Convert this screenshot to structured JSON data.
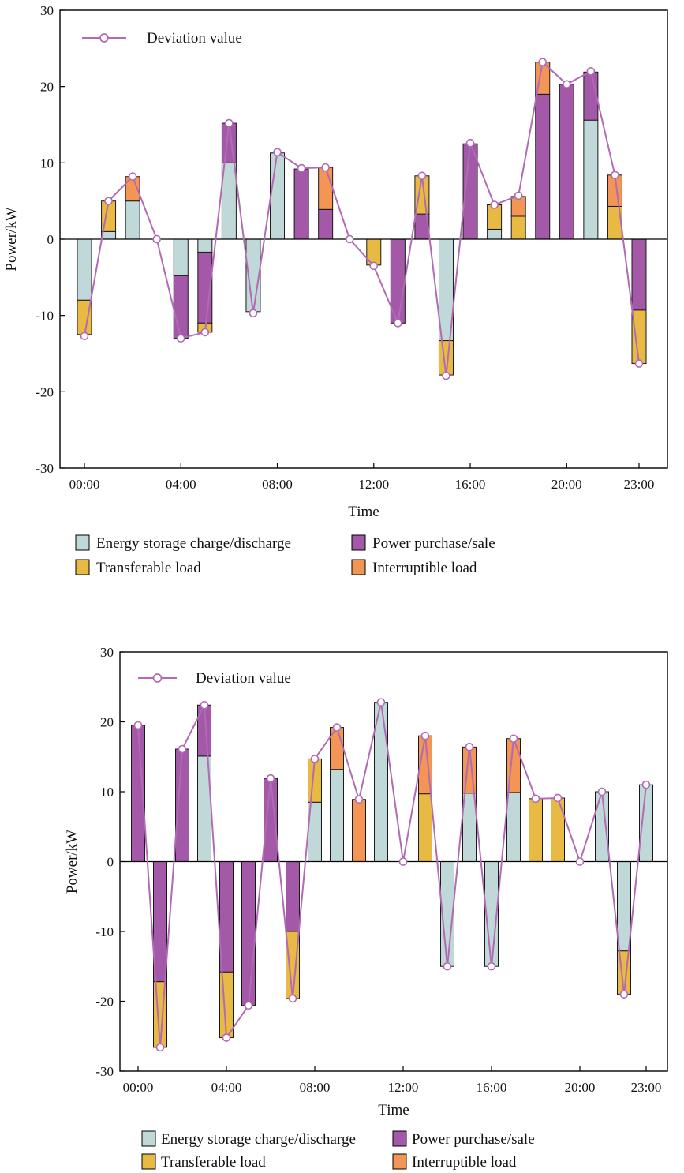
{
  "chart_data": [
    {
      "type": "bar",
      "stacked": true,
      "title": "",
      "xlabel": "Time",
      "ylabel": "Power/kW",
      "ylim": [
        -30,
        30
      ],
      "yticks": [
        30,
        20,
        10,
        0,
        -10,
        -20,
        -30
      ],
      "ytick_labels": [
        "30",
        "20",
        "10",
        "0",
        "-10",
        "-20",
        "-30"
      ],
      "hours": [
        0,
        1,
        2,
        3,
        4,
        5,
        6,
        7,
        8,
        9,
        10,
        11,
        12,
        13,
        14,
        15,
        16,
        17,
        18,
        19,
        20,
        21,
        22,
        23
      ],
      "xtick_labels": [
        "00:00",
        "04:00",
        "08:00",
        "12:00",
        "16:00",
        "20:00",
        "23:00"
      ],
      "xtick_hours": [
        0,
        4,
        8,
        12,
        16,
        20,
        23
      ],
      "series": [
        {
          "name": "Energy storage charge/discharge",
          "color": "#c1d8d8",
          "values": [
            -8,
            1,
            5,
            0,
            -4.8,
            -1.7,
            10,
            -9.5,
            11.3,
            0,
            0,
            0,
            0,
            0,
            0,
            -13.3,
            0,
            1.3,
            0,
            0,
            0,
            15.6,
            0,
            0
          ]
        },
        {
          "name": "Power purchase/sale",
          "color": "#a358a8",
          "values": [
            0,
            0,
            0,
            0,
            -8.2,
            -9.3,
            5.2,
            0,
            0,
            9.2,
            3.9,
            0,
            0,
            -11,
            3.3,
            0,
            12.5,
            0,
            0,
            19,
            20.3,
            6.3,
            0,
            -9.3
          ]
        },
        {
          "name": "Transferable load",
          "color": "#e8ba44",
          "values": [
            -4.5,
            4,
            0,
            0,
            0,
            -1.2,
            0,
            0,
            0,
            0,
            0,
            0,
            -3.4,
            0,
            5,
            -4.5,
            0,
            3.2,
            3,
            0,
            0,
            0,
            4.3,
            -7
          ]
        },
        {
          "name": "Interruptible load",
          "color": "#f39655",
          "values": [
            0,
            0,
            3.2,
            0,
            0,
            0,
            0,
            0,
            0,
            0,
            5.5,
            0,
            0,
            0,
            0,
            0,
            0,
            0,
            2.6,
            4.2,
            0,
            0,
            4.1,
            0
          ]
        }
      ],
      "deviation": {
        "name": "Deviation value",
        "color": "#b26ab4",
        "values": [
          -12.7,
          5,
          8.2,
          0,
          -13,
          -12.2,
          15.2,
          -9.7,
          11.4,
          9.3,
          9.4,
          0,
          -3.5,
          -11,
          8.3,
          -17.9,
          12.6,
          4.5,
          5.7,
          23.2,
          20.3,
          22,
          8.4,
          -16.3
        ]
      },
      "legend_position": "top-left"
    },
    {
      "type": "bar",
      "stacked": true,
      "title": "",
      "xlabel": "Time",
      "ylabel": "Power/kW",
      "ylim": [
        -30,
        30
      ],
      "yticks": [
        30,
        20,
        10,
        0,
        -10,
        -20,
        -30
      ],
      "ytick_labels": [
        "30",
        "20",
        "10",
        "0",
        "-10",
        "-20",
        "-30"
      ],
      "hours": [
        0,
        1,
        2,
        3,
        4,
        5,
        6,
        7,
        8,
        9,
        10,
        11,
        12,
        13,
        14,
        15,
        16,
        17,
        18,
        19,
        20,
        21,
        22,
        23
      ],
      "xtick_labels": [
        "00:00",
        "04:00",
        "08:00",
        "12:00",
        "16:00",
        "20:00",
        "23:00"
      ],
      "xtick_hours": [
        0,
        4,
        8,
        12,
        16,
        20,
        23
      ],
      "series": [
        {
          "name": "Energy storage charge/discharge",
          "color": "#c1d8d8",
          "values": [
            0,
            0,
            0,
            15.1,
            0,
            0,
            0,
            0,
            8.5,
            13.2,
            0,
            22.8,
            0,
            0,
            -15,
            9.8,
            -15,
            9.9,
            0,
            0,
            0,
            10,
            -12.8,
            11
          ]
        },
        {
          "name": "Power purchase/sale",
          "color": "#a358a8",
          "values": [
            19.5,
            -17.2,
            16.1,
            7.3,
            -15.8,
            -20.6,
            11.9,
            -10,
            0,
            0,
            0,
            0,
            0,
            0,
            0,
            0,
            0,
            0,
            0,
            0,
            0,
            0,
            0,
            0
          ]
        },
        {
          "name": "Transferable load",
          "color": "#e8ba44",
          "values": [
            0,
            -9.4,
            0,
            0,
            -9.4,
            0,
            0,
            -9.6,
            6.2,
            0,
            0,
            0,
            0,
            9.7,
            0,
            0,
            0,
            0,
            9,
            9.1,
            0,
            0,
            -6.2,
            0
          ]
        },
        {
          "name": "Interruptible load",
          "color": "#f39655",
          "values": [
            0,
            0,
            0,
            0,
            0,
            0,
            0,
            0,
            0,
            6,
            8.9,
            0,
            0,
            8.3,
            0,
            6.6,
            0,
            7.7,
            0,
            0,
            0,
            0,
            0,
            0
          ]
        }
      ],
      "deviation": {
        "name": "Deviation value",
        "color": "#b26ab4",
        "values": [
          19.5,
          -26.6,
          16.1,
          22.4,
          -25.2,
          -20.6,
          11.9,
          -19.6,
          14.7,
          19.2,
          8.9,
          22.8,
          0,
          18,
          -15,
          16.4,
          -15,
          17.6,
          9,
          9.1,
          0,
          10,
          -19,
          11
        ]
      },
      "legend_position": "top-left"
    }
  ]
}
